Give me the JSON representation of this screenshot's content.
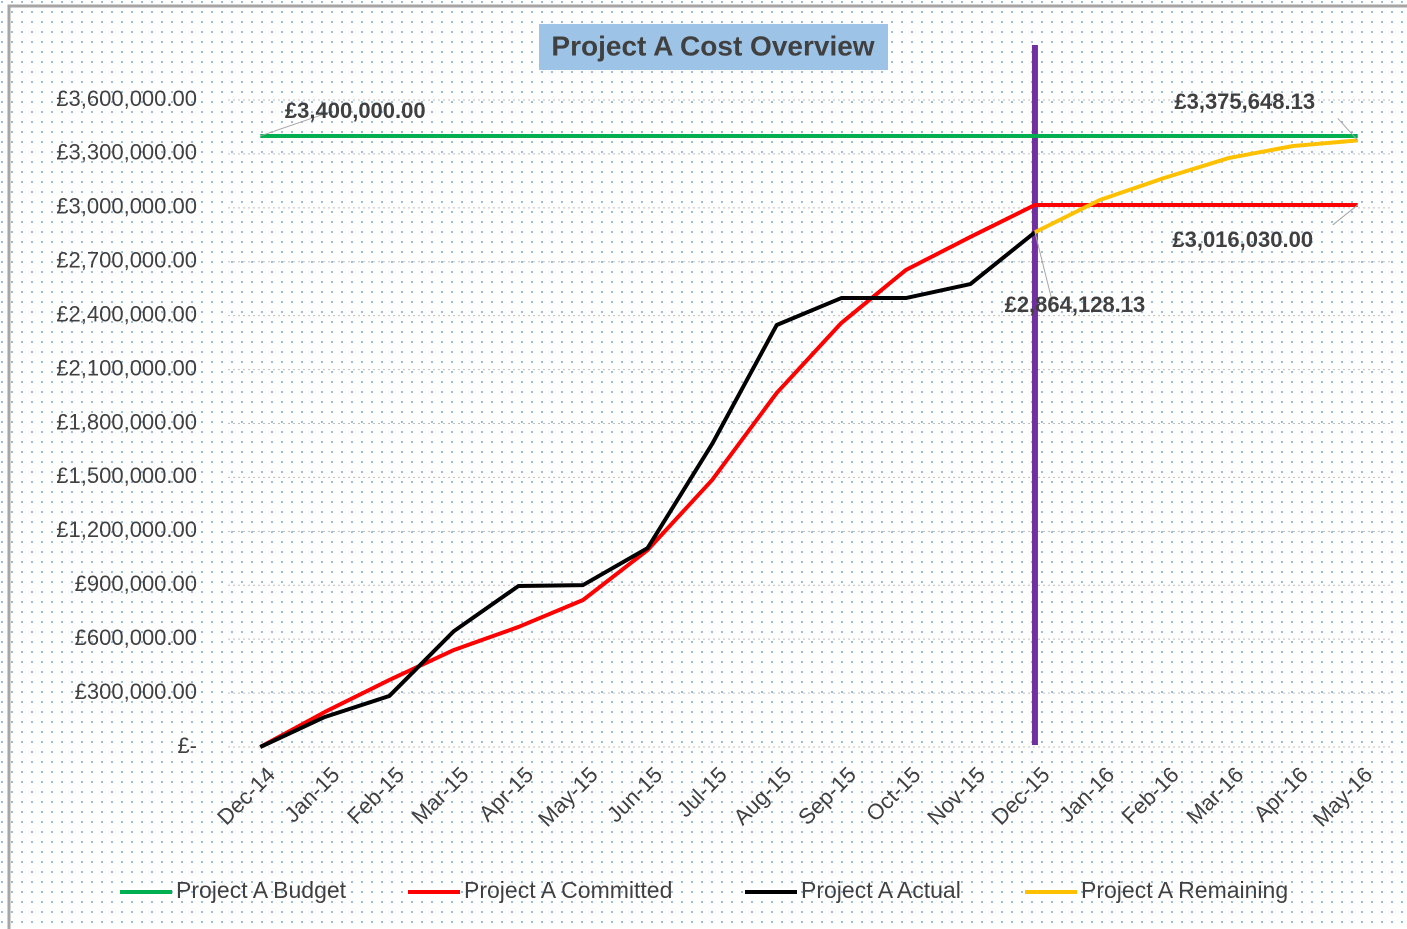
{
  "chart_data": {
    "type": "line",
    "title": "Project A Cost Overview",
    "categories": [
      "Dec-14",
      "Jan-15",
      "Feb-15",
      "Mar-15",
      "Apr-15",
      "May-15",
      "Jun-15",
      "Jul-15",
      "Aug-15",
      "Sep-15",
      "Oct-15",
      "Nov-15",
      "Dec-15",
      "Jan-16",
      "Feb-16",
      "Mar-16",
      "Apr-16",
      "May-16"
    ],
    "series": [
      {
        "name": "Project A Budget",
        "color": "#00b050",
        "values": [
          3400000,
          3400000,
          3400000,
          3400000,
          3400000,
          3400000,
          3400000,
          3400000,
          3400000,
          3400000,
          3400000,
          3400000,
          3400000,
          3400000,
          3400000,
          3400000,
          3400000,
          3400000
        ],
        "value_labels": [
          "£3,400,000.00",
          null,
          null,
          null,
          null,
          null,
          null,
          null,
          null,
          null,
          null,
          null,
          null,
          null,
          null,
          null,
          null,
          null
        ]
      },
      {
        "name": "Project A Committed",
        "color": "#ff0000",
        "values": [
          0,
          195000,
          373000,
          540000,
          668000,
          818000,
          1096000,
          1486000,
          1970000,
          2359000,
          2654000,
          2838000,
          3016030,
          3016030,
          3016030,
          3016030,
          3016030,
          3016030
        ],
        "value_labels": [
          null,
          null,
          null,
          null,
          null,
          null,
          null,
          null,
          null,
          null,
          null,
          null,
          null,
          null,
          null,
          null,
          null,
          "£3,016,030.00"
        ]
      },
      {
        "name": "Project A Actual",
        "color": "#000000",
        "values": [
          0,
          167000,
          284000,
          645000,
          896000,
          901000,
          1107000,
          1686000,
          2348000,
          2498000,
          2498000,
          2576000,
          2864128.13,
          null,
          null,
          null,
          null,
          null
        ],
        "value_labels": [
          null,
          null,
          null,
          null,
          null,
          null,
          null,
          null,
          null,
          null,
          null,
          null,
          "£2,864,128.13",
          null,
          null,
          null,
          null,
          null
        ]
      },
      {
        "name": "Project A Remaining",
        "color": "#ffc000",
        "values": [
          null,
          null,
          null,
          null,
          null,
          null,
          null,
          null,
          null,
          null,
          null,
          null,
          2864128.13,
          3043000,
          3166000,
          3277000,
          3344000,
          3375648.13
        ],
        "value_labels": [
          null,
          null,
          null,
          null,
          null,
          null,
          null,
          null,
          null,
          null,
          null,
          null,
          null,
          null,
          null,
          null,
          null,
          "£3,375,648.13"
        ]
      }
    ],
    "ylim": [
      0,
      3600000
    ],
    "yticks": [
      {
        "value": 0,
        "label": "£-"
      },
      {
        "value": 300000,
        "label": "£300,000.00"
      },
      {
        "value": 600000,
        "label": "£600,000.00"
      },
      {
        "value": 900000,
        "label": "£900,000.00"
      },
      {
        "value": 1200000,
        "label": "£1,200,000.00"
      },
      {
        "value": 1500000,
        "label": "£1,500,000.00"
      },
      {
        "value": 1800000,
        "label": "£1,800,000.00"
      },
      {
        "value": 2100000,
        "label": "£2,100,000.00"
      },
      {
        "value": 2400000,
        "label": "£2,400,000.00"
      },
      {
        "value": 2700000,
        "label": "£2,700,000.00"
      },
      {
        "value": 3000000,
        "label": "£3,000,000.00"
      },
      {
        "value": 3300000,
        "label": "£3,300,000.00"
      },
      {
        "value": 3600000,
        "label": "£3,600,000.00"
      }
    ],
    "grid": true,
    "legend": "bottom"
  }
}
